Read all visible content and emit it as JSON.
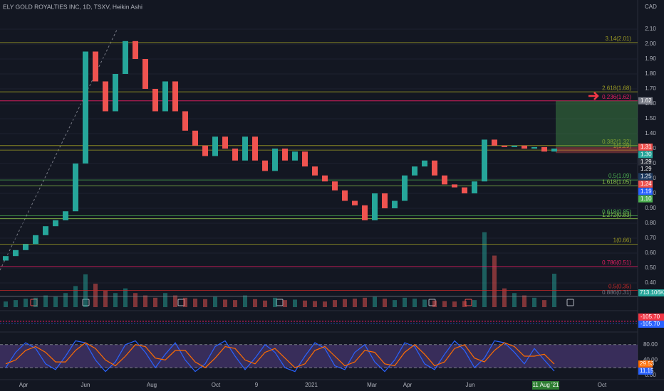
{
  "chart_data": {
    "type": "candlestick",
    "title": "ELY GOLD ROYALTIES INC, 1D, TSXV, Heikin Ashi",
    "currency": "CAD",
    "up_color": "#26a69a",
    "down_color": "#ef5350",
    "open": [
      0.55,
      0.58,
      0.62,
      0.66,
      0.72,
      0.78,
      0.82,
      0.88,
      1.2,
      1.95,
      1.75,
      1.55,
      1.8,
      2.02,
      1.9,
      1.7,
      1.55,
      1.75,
      1.55,
      1.42,
      1.32,
      1.25,
      1.38,
      1.3,
      1.22,
      1.38,
      1.22,
      1.15,
      1.3,
      1.22,
      1.28,
      1.18,
      1.12,
      1.08,
      1.02,
      0.95,
      0.92,
      0.82,
      1.0,
      0.9,
      0.95,
      1.12,
      1.18,
      1.22,
      1.12,
      1.06,
      1.04,
      1.0,
      1.08,
      1.36,
      1.32,
      1.31,
      1.32,
      1.3,
      1.31,
      1.28
    ],
    "close": [
      0.58,
      0.62,
      0.66,
      0.72,
      0.78,
      0.82,
      0.88,
      1.2,
      1.95,
      1.75,
      1.55,
      1.8,
      2.02,
      1.9,
      1.7,
      1.55,
      1.75,
      1.55,
      1.42,
      1.32,
      1.25,
      1.38,
      1.3,
      1.22,
      1.38,
      1.22,
      1.15,
      1.3,
      1.22,
      1.28,
      1.18,
      1.12,
      1.08,
      1.02,
      0.95,
      0.92,
      0.82,
      1.0,
      0.9,
      0.95,
      1.12,
      1.18,
      1.22,
      1.12,
      1.06,
      1.04,
      1.0,
      1.08,
      1.36,
      1.32,
      1.31,
      1.32,
      1.3,
      1.31,
      1.28,
      1.3
    ],
    "ylim": [
      0.3,
      2.2
    ],
    "yticks": [
      {
        "value": 0.4,
        "label": "0.40"
      },
      {
        "value": 0.5,
        "label": "0.50"
      },
      {
        "value": 0.6,
        "label": "0.60"
      },
      {
        "value": 0.7,
        "label": "0.70"
      },
      {
        "value": 0.8,
        "label": "0.80"
      },
      {
        "value": 0.9,
        "label": "0.90"
      },
      {
        "value": 1.0,
        "label": "1.00"
      },
      {
        "value": 1.1,
        "label": "1.10"
      },
      {
        "value": 1.2,
        "label": "1.20"
      },
      {
        "value": 1.3,
        "label": "1.30"
      },
      {
        "value": 1.4,
        "label": "1.40"
      },
      {
        "value": 1.5,
        "label": "1.50"
      },
      {
        "value": 1.6,
        "label": "1.60"
      },
      {
        "value": 1.7,
        "label": "1.70"
      },
      {
        "value": 1.8,
        "label": "1.80"
      },
      {
        "value": 1.9,
        "label": "1.90"
      },
      {
        "value": 2.0,
        "label": "2.00"
      },
      {
        "value": 2.1,
        "label": "2.10"
      }
    ],
    "x_axis_labels": [
      "Apr",
      "Jun",
      "Aug",
      "Oct",
      "9",
      "2021",
      "Mar",
      "Apr",
      "Jun",
      "11 Aug '21",
      "Oct"
    ],
    "fib_levels": [
      {
        "label": "3.14(2.01)",
        "value": 2.01,
        "color": "#9e9d24"
      },
      {
        "label": "2.618(1.68)",
        "value": 1.68,
        "color": "#9e9d24"
      },
      {
        "label": "0.236(1.62)",
        "value": 1.62,
        "color": "#e91e63"
      },
      {
        "label": "0.382(1.32)",
        "value": 1.32,
        "color": "#9e9d24"
      },
      {
        "label": "1(1.29)",
        "value": 1.29,
        "color": "#9e9d24"
      },
      {
        "label": "0.5(1.09)",
        "value": 1.09,
        "color": "#4caf50"
      },
      {
        "label": "1.618(1.05)",
        "value": 1.05,
        "color": "#8bc34a"
      },
      {
        "label": "0.618(0.85)",
        "value": 0.85,
        "color": "#4caf50"
      },
      {
        "label": "1.272(0.83)",
        "value": 0.83,
        "color": "#8bc34a"
      },
      {
        "label": "1(0.66)",
        "value": 0.66,
        "color": "#9e9d24"
      },
      {
        "label": "0.786(0.51)",
        "value": 0.51,
        "color": "#e91e63"
      },
      {
        "label": "0.5(0.35)",
        "value": 0.35,
        "color": "#c62828"
      },
      {
        "label": "0.886(0.31)",
        "value": 0.31,
        "color": "#787b86"
      }
    ],
    "position": {
      "target": 1.62,
      "entry": 1.31,
      "stop": 1.27
    },
    "price_labels": [
      {
        "label": "1.62",
        "value": 1.62,
        "color": "#787b86"
      },
      {
        "label": "1.31",
        "value": 1.31,
        "color": "#ef5350"
      },
      {
        "label": "1.30",
        "value": 1.3,
        "color": "#26a69a"
      },
      {
        "label": "1.29",
        "value": 1.29,
        "color": "#2a2e39"
      },
      {
        "label": "1.29",
        "value": 1.29,
        "color": "#131722"
      },
      {
        "label": "1.25",
        "value": 1.25,
        "color": "#1e3a5f"
      },
      {
        "label": "1.24",
        "value": 1.24,
        "color": "#ef5350"
      },
      {
        "label": "1.19",
        "value": 1.19,
        "color": "#2962ff"
      },
      {
        "label": "1.10",
        "value": 1.1,
        "color": "#4caf50"
      }
    ],
    "volume": {
      "values": [
        120000,
        150000,
        180000,
        200000,
        250000,
        220000,
        300000,
        450000,
        700000,
        500000,
        350000,
        300000,
        400000,
        300000,
        250000,
        200000,
        300000,
        250000,
        200000,
        180000,
        170000,
        220000,
        160000,
        150000,
        250000,
        170000,
        140000,
        200000,
        150000,
        160000,
        140000,
        130000,
        120000,
        150000,
        170000,
        180000,
        200000,
        220000,
        180000,
        150000,
        200000,
        180000,
        160000,
        140000,
        130000,
        120000,
        130000,
        150000,
        1600000,
        1100000,
        400000,
        300000,
        250000,
        200000,
        150000,
        713106
      ],
      "ylim": [
        0,
        1700000
      ],
      "last_label": "713.106K"
    },
    "macd": {
      "labels": [
        "-105.70",
        "-105.70"
      ]
    },
    "stoch_rsi": {
      "series": [
        {
          "name": "K",
          "color": "#2962ff",
          "values": [
            20,
            60,
            85,
            70,
            30,
            15,
            50,
            90,
            85,
            40,
            10,
            35,
            80,
            90,
            60,
            20,
            55,
            85,
            40,
            10,
            30,
            75,
            90,
            50,
            15,
            45,
            80,
            60,
            20,
            10,
            50,
            85,
            70,
            25,
            15,
            60,
            80,
            35,
            10,
            40,
            85,
            75,
            30,
            15,
            55,
            90,
            65,
            20,
            45,
            90,
            85,
            60,
            30,
            70,
            40,
            11.15
          ],
          "value_label": "11.15"
        },
        {
          "name": "D",
          "color": "#ff6d00",
          "values": [
            30,
            40,
            65,
            75,
            60,
            35,
            35,
            65,
            85,
            70,
            40,
            25,
            50,
            80,
            75,
            45,
            40,
            65,
            65,
            35,
            20,
            45,
            75,
            70,
            40,
            30,
            60,
            70,
            45,
            20,
            30,
            65,
            75,
            50,
            25,
            35,
            65,
            60,
            30,
            25,
            60,
            80,
            55,
            25,
            35,
            70,
            80,
            45,
            35,
            65,
            85,
            75,
            50,
            50,
            55,
            29.53
          ],
          "value_label": "29.53"
        }
      ],
      "ylim": [
        0,
        100
      ],
      "band": [
        20,
        80
      ],
      "yticks": [
        {
          "value": 80,
          "label": "80.00"
        },
        {
          "value": 40,
          "label": "40.00"
        },
        {
          "value": 0,
          "label": "0.00"
        }
      ]
    }
  }
}
